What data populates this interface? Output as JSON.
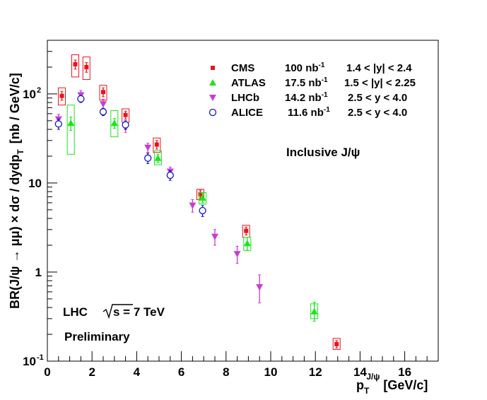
{
  "chart_data": {
    "type": "scatter",
    "xscale": "linear",
    "yscale": "log",
    "xlim": [
      0,
      17.5
    ],
    "ylim": [
      0.1,
      400
    ],
    "xlabel": {
      "main": "p",
      "sub": "T",
      "sup": "J/ψ",
      "unit": "[GeV/c]"
    },
    "ylabel": {
      "main": "BR(J/ψ → μμ) × dσ / dydp",
      "sub": "T",
      "unit": "[nb / GeV/c]"
    },
    "x_ticks": [
      0,
      2,
      4,
      6,
      8,
      10,
      12,
      14,
      16
    ],
    "y_ticks": [
      {
        "value": 0.1,
        "base": "10",
        "exp": "-1"
      },
      {
        "value": 1,
        "base": "1",
        "exp": ""
      },
      {
        "value": 10,
        "base": "10",
        "exp": ""
      },
      {
        "value": 100,
        "base": "10",
        "exp": "2"
      }
    ],
    "annotations": {
      "inclusive": "Inclusive J/ψ",
      "lhc": "LHC",
      "energy": "s = 7 TeV",
      "preliminary": "Preliminary"
    },
    "series": [
      {
        "name": "CMS",
        "lumi": "100 nb",
        "lumi_exp": "-1",
        "range": "1.4 < |y| < 2.4",
        "color": "#e8141c",
        "marker": "square",
        "points": [
          {
            "x": 0.65,
            "y": 95,
            "err_lo": 10,
            "err_hi": 12,
            "sys_lo": 20,
            "sys_hi": 22
          },
          {
            "x": 1.25,
            "y": 215,
            "err_lo": 25,
            "err_hi": 25,
            "sys_lo": 60,
            "sys_hi": 60
          },
          {
            "x": 1.75,
            "y": 200,
            "err_lo": 25,
            "err_hi": 25,
            "sys_lo": 55,
            "sys_hi": 60
          },
          {
            "x": 2.5,
            "y": 105,
            "err_lo": 12,
            "err_hi": 12,
            "sys_lo": 20,
            "sys_hi": 20
          },
          {
            "x": 3.5,
            "y": 58,
            "err_lo": 6,
            "err_hi": 6,
            "sys_lo": 10,
            "sys_hi": 10
          },
          {
            "x": 4.9,
            "y": 27,
            "err_lo": 3,
            "err_hi": 3,
            "sys_lo": 5,
            "sys_hi": 5
          },
          {
            "x": 6.85,
            "y": 7.5,
            "err_lo": 0.8,
            "err_hi": 0.8,
            "sys_lo": 1.0,
            "sys_hi": 1.0
          },
          {
            "x": 8.9,
            "y": 2.9,
            "err_lo": 0.3,
            "err_hi": 0.3,
            "sys_lo": 0.45,
            "sys_hi": 0.45
          },
          {
            "x": 12.95,
            "y": 0.155,
            "err_lo": 0.015,
            "err_hi": 0.015,
            "sys_lo": 0.02,
            "sys_hi": 0.025
          }
        ]
      },
      {
        "name": "ATLAS",
        "lumi": "17.5 nb",
        "lumi_exp": "-1",
        "range": "1.5 < |y| < 2.25",
        "color": "#19e619",
        "marker": "triangle-up",
        "points": [
          {
            "x": 1.05,
            "y": 47,
            "err_lo": 8,
            "err_hi": 8,
            "sys_lo": 26,
            "sys_hi": 28
          },
          {
            "x": 3.0,
            "y": 47,
            "err_lo": 6,
            "err_hi": 6,
            "sys_lo": 14,
            "sys_hi": 18
          },
          {
            "x": 4.95,
            "y": 19,
            "err_lo": 2,
            "err_hi": 2,
            "sys_lo": 3,
            "sys_hi": 4
          },
          {
            "x": 6.95,
            "y": 6.8,
            "err_lo": 0.8,
            "err_hi": 0.8,
            "sys_lo": 1.0,
            "sys_hi": 1.0
          },
          {
            "x": 8.95,
            "y": 2.1,
            "err_lo": 0.35,
            "err_hi": 0.35,
            "sys_lo": 0.35,
            "sys_hi": 0.35
          },
          {
            "x": 11.95,
            "y": 0.36,
            "err_lo": 0.08,
            "err_hi": 0.1,
            "sys_lo": 0.06,
            "sys_hi": 0.08
          }
        ]
      },
      {
        "name": "LHCb",
        "lumi": "14.2 nb",
        "lumi_exp": "-1",
        "range": "2.5 < y < 4.0",
        "color": "#c83cd2",
        "marker": "triangle-down",
        "points": [
          {
            "x": 0.5,
            "y": 52,
            "err_lo": 7,
            "err_hi": 7
          },
          {
            "x": 1.5,
            "y": 97,
            "err_lo": 12,
            "err_hi": 12
          },
          {
            "x": 2.5,
            "y": 77,
            "err_lo": 10,
            "err_hi": 10
          },
          {
            "x": 3.5,
            "y": 42,
            "err_lo": 5,
            "err_hi": 5
          },
          {
            "x": 4.5,
            "y": 25,
            "err_lo": 3,
            "err_hi": 3
          },
          {
            "x": 5.5,
            "y": 13.5,
            "err_lo": 1.6,
            "err_hi": 1.6
          },
          {
            "x": 6.5,
            "y": 5.6,
            "err_lo": 0.9,
            "err_hi": 0.9
          },
          {
            "x": 7.5,
            "y": 2.5,
            "err_lo": 0.5,
            "err_hi": 0.5
          },
          {
            "x": 8.5,
            "y": 1.6,
            "err_lo": 0.35,
            "err_hi": 0.35
          },
          {
            "x": 9.5,
            "y": 0.68,
            "err_lo": 0.23,
            "err_hi": 0.25
          }
        ]
      },
      {
        "name": "ALICE",
        "lumi": "11.6 nb",
        "lumi_exp": "-1",
        "range": "2.5 < y < 4.0",
        "color": "#1414c8",
        "marker": "circle-open",
        "points": [
          {
            "x": 0.5,
            "y": 46,
            "err_lo": 6,
            "err_hi": 6
          },
          {
            "x": 1.5,
            "y": 88,
            "err_lo": 8,
            "err_hi": 8
          },
          {
            "x": 2.5,
            "y": 63,
            "err_lo": 6,
            "err_hi": 6
          },
          {
            "x": 3.5,
            "y": 45,
            "err_lo": 5,
            "err_hi": 5
          },
          {
            "x": 4.5,
            "y": 19,
            "err_lo": 2.5,
            "err_hi": 2.5
          },
          {
            "x": 5.5,
            "y": 12.2,
            "err_lo": 1.5,
            "err_hi": 1.5
          },
          {
            "x": 6.95,
            "y": 4.9,
            "err_lo": 0.7,
            "err_hi": 0.7
          }
        ]
      }
    ]
  }
}
